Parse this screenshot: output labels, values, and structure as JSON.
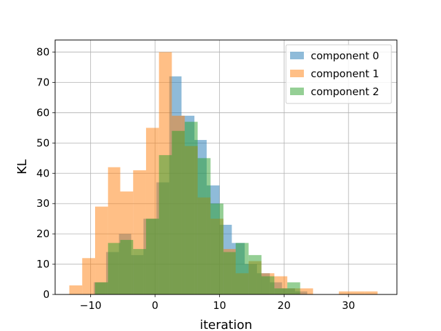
{
  "chart_data": {
    "type": "histogram",
    "xlabel": "iteration",
    "ylabel": "KL",
    "xlim": [
      -15.5,
      37.5
    ],
    "ylim": [
      0,
      84
    ],
    "xticks": [
      -10,
      0,
      10,
      20,
      30
    ],
    "yticks": [
      0,
      10,
      20,
      30,
      40,
      50,
      60,
      70,
      80
    ],
    "grid": true,
    "legend_position": "top-right",
    "series": [
      {
        "name": "component 0",
        "color": "#1f77b4",
        "opacity": 0.5,
        "bins": [
          [
            -9.5,
            -7.6,
            4
          ],
          [
            -7.6,
            -5.6,
            14
          ],
          [
            -5.6,
            -3.7,
            20
          ],
          [
            -3.7,
            -1.8,
            13
          ],
          [
            -1.8,
            0.2,
            25
          ],
          [
            0.2,
            2.2,
            37
          ],
          [
            2.2,
            4.1,
            72
          ],
          [
            4.1,
            6.1,
            59
          ],
          [
            6.1,
            8.0,
            51
          ],
          [
            8.0,
            10.0,
            36
          ],
          [
            10.0,
            11.9,
            23
          ],
          [
            11.9,
            13.9,
            17
          ],
          [
            13.9,
            15.8,
            10
          ],
          [
            15.8,
            17.8,
            7
          ],
          [
            17.8,
            19.7,
            4
          ],
          [
            19.7,
            21.7,
            2
          ],
          [
            21.7,
            23.6,
            1
          ]
        ]
      },
      {
        "name": "component 1",
        "color": "#ff7f0e",
        "opacity": 0.5,
        "bins": [
          [
            -13.3,
            -11.3,
            3
          ],
          [
            -11.3,
            -9.3,
            12
          ],
          [
            -9.3,
            -7.3,
            29
          ],
          [
            -7.3,
            -5.4,
            42
          ],
          [
            -5.4,
            -3.4,
            34
          ],
          [
            -3.4,
            -1.4,
            41
          ],
          [
            -1.4,
            0.6,
            55
          ],
          [
            0.6,
            2.6,
            80
          ],
          [
            2.6,
            4.6,
            59
          ],
          [
            4.6,
            6.6,
            49
          ],
          [
            6.6,
            8.6,
            32
          ],
          [
            8.6,
            10.6,
            25
          ],
          [
            10.6,
            12.5,
            15
          ],
          [
            12.5,
            14.5,
            7
          ],
          [
            14.5,
            16.5,
            11
          ],
          [
            16.5,
            18.5,
            7
          ],
          [
            18.5,
            20.5,
            6
          ],
          [
            20.5,
            22.5,
            2
          ],
          [
            22.5,
            24.5,
            2
          ],
          [
            24.5,
            26.5,
            0
          ],
          [
            26.5,
            28.5,
            0
          ],
          [
            28.5,
            30.5,
            1
          ],
          [
            30.5,
            32.5,
            1
          ],
          [
            32.5,
            34.5,
            1
          ]
        ]
      },
      {
        "name": "component 2",
        "color": "#2ca02c",
        "opacity": 0.5,
        "bins": [
          [
            -9.3,
            -7.3,
            4
          ],
          [
            -7.3,
            -5.4,
            17
          ],
          [
            -5.4,
            -3.4,
            18
          ],
          [
            -3.4,
            -1.4,
            15
          ],
          [
            -1.4,
            0.6,
            25
          ],
          [
            0.6,
            2.6,
            46
          ],
          [
            2.6,
            4.6,
            54
          ],
          [
            4.6,
            6.6,
            57
          ],
          [
            6.6,
            8.6,
            45
          ],
          [
            8.6,
            10.6,
            30
          ],
          [
            10.6,
            12.5,
            14
          ],
          [
            12.5,
            14.5,
            17
          ],
          [
            14.5,
            16.5,
            13
          ],
          [
            16.5,
            18.5,
            6
          ],
          [
            18.5,
            20.5,
            2
          ],
          [
            20.5,
            22.5,
            4
          ]
        ]
      }
    ]
  }
}
